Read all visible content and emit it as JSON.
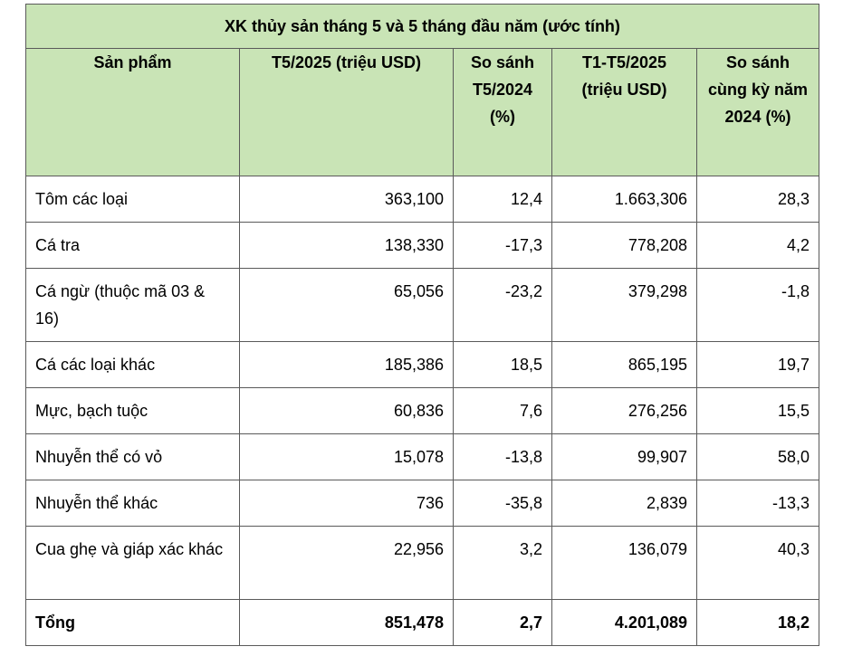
{
  "table": {
    "title": "XK thủy sản tháng 5 và 5 tháng đầu năm (ước tính)",
    "headers": [
      "Sản phẩm",
      "T5/2025 (triệu USD)",
      "So sánh T5/2024 (%)",
      "T1-T5/2025 (triệu USD)",
      "So sánh cùng kỳ năm 2024 (%)"
    ],
    "rows": [
      {
        "product": "Tôm các loại",
        "t5_2025": "363,100",
        "vs_t5_2024": "12,4",
        "t1_t5_2025": "1.663,306",
        "vs_same_period_2024": "28,3"
      },
      {
        "product": "Cá tra",
        "t5_2025": "138,330",
        "vs_t5_2024": "-17,3",
        "t1_t5_2025": "778,208",
        "vs_same_period_2024": "4,2"
      },
      {
        "product": "Cá ngừ (thuộc mã 03 & 16)",
        "t5_2025": "65,056",
        "vs_t5_2024": "-23,2",
        "t1_t5_2025": "379,298",
        "vs_same_period_2024": "-1,8"
      },
      {
        "product": "Cá các loại khác",
        "t5_2025": "185,386",
        "vs_t5_2024": "18,5",
        "t1_t5_2025": "865,195",
        "vs_same_period_2024": "19,7"
      },
      {
        "product": "Mực, bạch tuộc",
        "t5_2025": "60,836",
        "vs_t5_2024": "7,6",
        "t1_t5_2025": "276,256",
        "vs_same_period_2024": "15,5"
      },
      {
        "product": "Nhuyễn thể có vỏ",
        "t5_2025": "15,078",
        "vs_t5_2024": "-13,8",
        "t1_t5_2025": "99,907",
        "vs_same_period_2024": "58,0"
      },
      {
        "product": "Nhuyễn thể khác",
        "t5_2025": "736",
        "vs_t5_2024": "-35,8",
        "t1_t5_2025": "2,839",
        "vs_same_period_2024": "-13,3"
      },
      {
        "product": "Cua ghẹ và giáp xác khác",
        "t5_2025": "22,956",
        "vs_t5_2024": "3,2",
        "t1_t5_2025": "136,079",
        "vs_same_period_2024": "40,3"
      }
    ],
    "total": {
      "product": "Tổng",
      "t5_2025": "851,478",
      "vs_t5_2024": "2,7",
      "t1_t5_2025": "4.201,089",
      "vs_same_period_2024": "18,2"
    },
    "header_color": "#c9e4b6"
  }
}
